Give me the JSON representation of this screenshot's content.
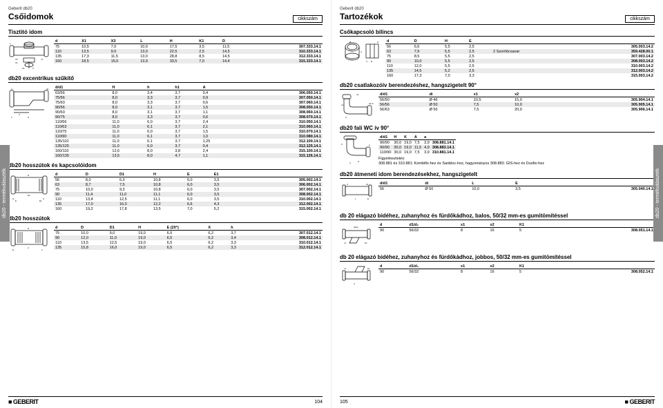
{
  "brand": "Geberit db20",
  "left": {
    "title": "Csőidomok",
    "cikkszam": "cikkszám",
    "blocks": {
      "tisztito": {
        "title": "Tisztitó idom",
        "headers": [
          "d",
          "X1",
          "X3",
          "L",
          "H",
          "K1",
          "D",
          ""
        ],
        "rows": [
          [
            "75",
            "10,5",
            "7,0",
            "10,0",
            "17,5",
            "3,5",
            "11,5",
            "307.333.14.1"
          ],
          [
            "110",
            "13,5",
            "9,0",
            "13,0",
            "22,5",
            "2,5",
            "14,5",
            "310.333.14.1"
          ],
          [
            "135",
            "17,3",
            "11,5",
            "13,0",
            "28,8",
            "8,5",
            "14,5",
            "312.333.14.1"
          ],
          [
            "160",
            "18,5",
            "15,0",
            "13,9",
            "33,5",
            "7,0",
            "14,4",
            "315.333.14.1"
          ]
        ]
      },
      "excentrikus": {
        "title": "db20 excentrikus szűkítő",
        "headers": [
          "d/d1",
          "H",
          "h",
          "h1",
          "A",
          ""
        ],
        "rows": [
          [
            "63/56",
            "8,0",
            "3,4",
            "3,7",
            "0,4",
            "306.050.14.1"
          ],
          [
            "75/56",
            "8,0",
            "3,3",
            "3,7",
            "0,9",
            "307.050.14.1"
          ],
          [
            "75/63",
            "8,0",
            "3,3",
            "3,7",
            "0,6",
            "307.060.14.1"
          ],
          [
            "90/56",
            "8,0",
            "3,1",
            "3,7",
            "1,5",
            "308.050.14.1"
          ],
          [
            "90/63",
            "8,0",
            "3,1",
            "3,7",
            "1,1",
            "308.060.14.1"
          ],
          [
            "90/75",
            "8,0",
            "3,3",
            "3,7",
            "0,6",
            "308.070.14.1"
          ],
          [
            "110/56",
            "11,0",
            "6,0",
            "3,7",
            "2,4",
            "310.050.14.1"
          ],
          [
            "110/63",
            "11,0",
            "6,1",
            "3,7",
            "2,1",
            "310.060.14.1"
          ],
          [
            "110/75",
            "11,0",
            "6,0",
            "3,7",
            "1,5",
            "310.070.14.1"
          ],
          [
            "110/90",
            "11,0",
            "6,1",
            "3,7",
            "1,0",
            "310.080.14.1"
          ],
          [
            "135/110",
            "11,0",
            "6,1",
            "3,7",
            "1,25",
            "312.100.14.1"
          ],
          [
            "135/125",
            "11,0",
            "6,0",
            "3,7",
            "0,4",
            "312.125.14.1"
          ],
          [
            "160/110",
            "12,6",
            "8,0",
            "3,8",
            "2,4",
            "315.100.14.1"
          ],
          [
            "160/135",
            "13,5",
            "8,0",
            "4,7",
            "1,1",
            "315.126.14.1"
          ]
        ]
      },
      "kapcsoloidom": {
        "title": "db20 hosszútok és kapcsolóidom",
        "headers": [
          "d",
          "D",
          "D1",
          "H",
          "E",
          "E1",
          ""
        ],
        "rows": [
          [
            "56",
            "8,0",
            "6,3",
            "10,8",
            "6,0",
            "3,5",
            "305.002.14.1"
          ],
          [
            "63",
            "8,7",
            "7,5",
            "10,8",
            "6,0",
            "3,5",
            "306.002.14.1"
          ],
          [
            "75",
            "10,0",
            "9,3",
            "10,8",
            "6,0",
            "3,5",
            "307.002.14.1"
          ],
          [
            "90",
            "11,4",
            "11,0",
            "11,1",
            "6,0",
            "3,5",
            "308.002.14.1"
          ],
          [
            "110",
            "13,4",
            "12,5",
            "11,1",
            "6,0",
            "3,5",
            "310.002.14.1"
          ],
          [
            "135",
            "17,0",
            "16,0",
            "12,2",
            "6,6",
            "4,3",
            "312.002.14.1"
          ],
          [
            "160",
            "19,2",
            "17,8",
            "13,5",
            "7,0",
            "5,2",
            "315.002.14.1"
          ]
        ]
      },
      "hosszutok": {
        "title": "db20 hosszútok",
        "headers": [
          "d",
          "D",
          "D1",
          "H",
          "E (20°)",
          "X",
          "h",
          ""
        ],
        "rows": [
          [
            "75",
            "10,0",
            "9,0",
            "19,0",
            "6,5",
            "6,2",
            "3,7",
            "307.012.14.1"
          ],
          [
            "90",
            "12,0",
            "11,0",
            "19,0",
            "6,5",
            "6,2",
            "3,4",
            "308.012.14.1"
          ],
          [
            "110",
            "13,5",
            "12,5",
            "19,0",
            "6,5",
            "6,2",
            "3,3",
            "310.012.14.1"
          ],
          [
            "135",
            "15,8",
            "16,0",
            "19,0",
            "6,5",
            "6,2",
            "3,3",
            "312.012.14.1"
          ]
        ]
      }
    },
    "pagenum": "104"
  },
  "right": {
    "title": "Tartozékok",
    "cikkszam": "cikkszám",
    "blocks": {
      "bilincs": {
        "title": "Csőkapcsoló bilincs",
        "headers": [
          "d",
          "D",
          "H",
          "E",
          "",
          ""
        ],
        "rows": [
          [
            "56",
            "6,6",
            "5,5",
            "2,5",
            "",
            "305.003.14.2"
          ],
          [
            "63",
            "7,9",
            "5,5",
            "2,5",
            "2 Szorítócsavar",
            "359.428.00.1"
          ],
          [
            "75",
            "8,5",
            "5,5",
            "2,5",
            "",
            "307.003.14.2"
          ],
          [
            "90",
            "10,0",
            "5,5",
            "2,5",
            "",
            "308.003.14.2"
          ],
          [
            "110",
            "12,0",
            "5,5",
            "2,5",
            "",
            "310.003.14.2"
          ],
          [
            "135",
            "14,5",
            "5,2",
            "2,5",
            "",
            "312.003.14.2"
          ],
          [
            "160",
            "17,3",
            "7,0",
            "3,3",
            "",
            "315.003.14.2"
          ]
        ]
      },
      "csatlakozoiv": {
        "title": "db20 csatlakozóív berendezéshez, hangszigetelt 90°",
        "headers": [
          "d/d1",
          "di",
          "x1",
          "x2",
          ""
        ],
        "rows": [
          [
            "56/50",
            "Ø 46",
            "10,5",
            "15,0",
            "305.904.14.1"
          ],
          [
            "56/56",
            "Ø 50",
            "7,5",
            "10,0",
            "305.905.14.1"
          ],
          [
            "56/63",
            "Ø 56",
            "7,5",
            "20,0",
            "305.906.14.1"
          ]
        ]
      },
      "faliwc": {
        "title": "db20 fali WC ív 90°",
        "headers": [
          "d/d1",
          "H",
          "K",
          "A",
          "a",
          ""
        ],
        "rows": [
          [
            "90/90",
            "30,0",
            "19,0",
            "7,5",
            "3,9",
            "308.881.14.1"
          ],
          [
            "90/90",
            "30,0",
            "19,0",
            "11,5",
            "4,9",
            "308.883.14.1"
          ],
          [
            "110/90",
            "30,0",
            "19,0",
            "7,5",
            "3,9",
            "310.881.14.1"
          ]
        ],
        "note_title": "Figyelmeztetés:",
        "note_text": "308.881 és 310.881: Kombifix-hez és Sanbloc-hoz, hagyományos 308.883: GIS-hez és Duofix-hez"
      },
      "atmeneti": {
        "title": "db20 átmeneti idom berendezésekhez, hangszigetelt",
        "headers": [
          "d/d1",
          "di",
          "L",
          "E",
          ""
        ],
        "rows": [
          [
            "56",
            "Ø 50",
            "10,0",
            "3,5",
            "305.040.14.1"
          ]
        ]
      },
      "elagazo_balos": {
        "title": "db 20 elágazó bidéhez, zuhanyhoz és fürdőkádhoz, balos, 50/32 mm-es gumitömítéssel",
        "headers": [
          "d",
          "d1/d₁",
          "x1",
          "x2",
          "K1",
          ""
        ],
        "rows": [
          [
            "90",
            "56/32",
            "8",
            "16",
            "5",
            "308.051.14.1"
          ]
        ]
      },
      "elagazo_jobbos": {
        "title": "db 20 elágazó bidéhez, zuhanyhoz és fürdőkádhoz, jobbos, 50/32 mm-es gumitömítéssel",
        "headers": [
          "d",
          "d1/d₁",
          "x1",
          "x2",
          "K1",
          ""
        ],
        "rows": [
          [
            "90",
            "56/32",
            "8",
            "16",
            "5",
            "308.052.14.1"
          ]
        ]
      }
    },
    "pagenum": "105"
  },
  "sidetab": "db20 - termékválaszték",
  "logo": "■ GEBERIT"
}
